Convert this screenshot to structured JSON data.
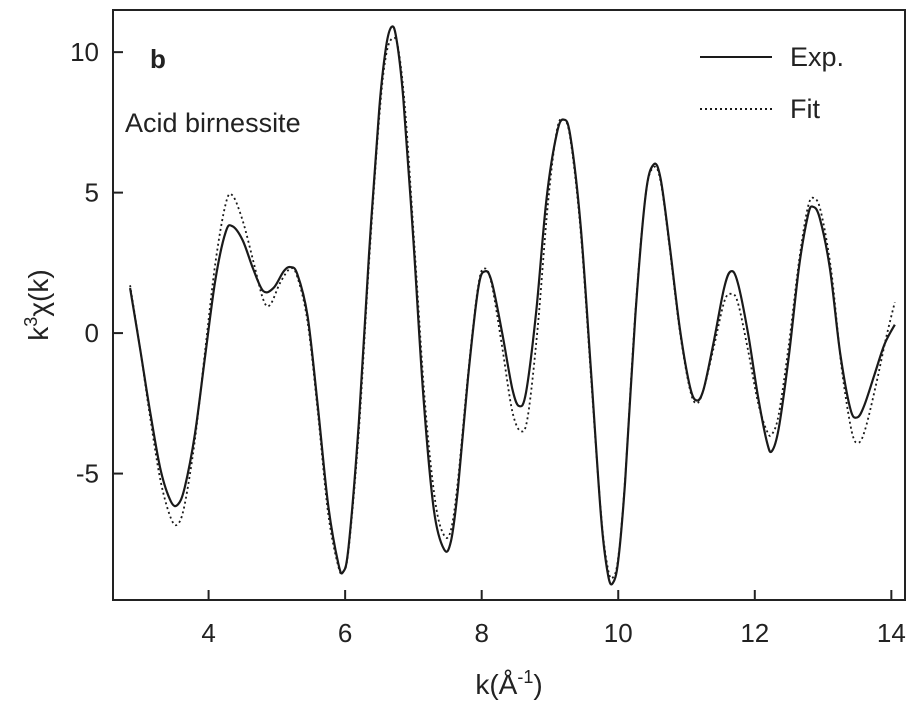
{
  "chart_data": {
    "type": "line",
    "panel_label": "b",
    "annotation": "Acid birnessite",
    "xlabel": {
      "prefix": "k(Å",
      "sup": "-1",
      "suffix": ")"
    },
    "ylabel": {
      "prefix": "k",
      "sup": "3",
      "suffix": "χ(k)"
    },
    "xlim": [
      2.6,
      14.2
    ],
    "ylim": [
      -9.5,
      11.5
    ],
    "xticks": [
      4,
      6,
      8,
      10,
      12,
      14
    ],
    "yticks": [
      -5,
      0,
      5,
      10
    ],
    "legend": {
      "position": "top-right"
    },
    "grid": false,
    "series": [
      {
        "name": "Exp.",
        "style": "solid",
        "color": "#1a1a1a",
        "points": [
          [
            2.85,
            1.6
          ],
          [
            3.0,
            -0.6
          ],
          [
            3.15,
            -2.9
          ],
          [
            3.3,
            -4.9
          ],
          [
            3.45,
            -6.0
          ],
          [
            3.55,
            -6.1
          ],
          [
            3.65,
            -5.5
          ],
          [
            3.8,
            -3.6
          ],
          [
            3.95,
            -0.8
          ],
          [
            4.1,
            1.9
          ],
          [
            4.25,
            3.6
          ],
          [
            4.35,
            3.8
          ],
          [
            4.5,
            3.3
          ],
          [
            4.65,
            2.3
          ],
          [
            4.8,
            1.5
          ],
          [
            4.95,
            1.6
          ],
          [
            5.1,
            2.2
          ],
          [
            5.2,
            2.35
          ],
          [
            5.3,
            2.1
          ],
          [
            5.45,
            0.6
          ],
          [
            5.6,
            -2.6
          ],
          [
            5.75,
            -6.1
          ],
          [
            5.9,
            -8.2
          ],
          [
            5.97,
            -8.5
          ],
          [
            6.05,
            -7.6
          ],
          [
            6.2,
            -3.2
          ],
          [
            6.35,
            2.8
          ],
          [
            6.5,
            8.0
          ],
          [
            6.6,
            10.2
          ],
          [
            6.68,
            10.9
          ],
          [
            6.75,
            10.5
          ],
          [
            6.85,
            8.4
          ],
          [
            7.0,
            3.3
          ],
          [
            7.15,
            -2.4
          ],
          [
            7.3,
            -6.3
          ],
          [
            7.45,
            -7.7
          ],
          [
            7.55,
            -7.4
          ],
          [
            7.65,
            -5.6
          ],
          [
            7.8,
            -1.6
          ],
          [
            7.95,
            1.6
          ],
          [
            8.05,
            2.2
          ],
          [
            8.15,
            1.8
          ],
          [
            8.3,
            0.0
          ],
          [
            8.45,
            -2.0
          ],
          [
            8.55,
            -2.6
          ],
          [
            8.65,
            -2.1
          ],
          [
            8.8,
            0.8
          ],
          [
            8.95,
            4.8
          ],
          [
            9.1,
            7.1
          ],
          [
            9.2,
            7.6
          ],
          [
            9.3,
            7.0
          ],
          [
            9.45,
            3.8
          ],
          [
            9.6,
            -1.3
          ],
          [
            9.75,
            -6.6
          ],
          [
            9.85,
            -8.6
          ],
          [
            9.92,
            -8.9
          ],
          [
            10.0,
            -8.1
          ],
          [
            10.1,
            -5.3
          ],
          [
            10.25,
            0.6
          ],
          [
            10.4,
            4.9
          ],
          [
            10.52,
            6.0
          ],
          [
            10.62,
            5.5
          ],
          [
            10.75,
            3.2
          ],
          [
            10.9,
            0.2
          ],
          [
            11.05,
            -1.9
          ],
          [
            11.15,
            -2.4
          ],
          [
            11.25,
            -2.0
          ],
          [
            11.4,
            -0.3
          ],
          [
            11.55,
            1.6
          ],
          [
            11.65,
            2.2
          ],
          [
            11.75,
            1.8
          ],
          [
            11.9,
            0.0
          ],
          [
            12.05,
            -2.3
          ],
          [
            12.18,
            -3.9
          ],
          [
            12.25,
            -4.2
          ],
          [
            12.35,
            -3.4
          ],
          [
            12.5,
            -0.8
          ],
          [
            12.65,
            2.4
          ],
          [
            12.78,
            4.2
          ],
          [
            12.85,
            4.5
          ],
          [
            12.95,
            4.1
          ],
          [
            13.1,
            2.3
          ],
          [
            13.25,
            -0.7
          ],
          [
            13.4,
            -2.7
          ],
          [
            13.5,
            -3.0
          ],
          [
            13.6,
            -2.6
          ],
          [
            13.75,
            -1.5
          ],
          [
            13.9,
            -0.4
          ],
          [
            14.05,
            0.3
          ]
        ]
      },
      {
        "name": "Fit",
        "style": "dotted",
        "color": "#1a1a1a",
        "points": [
          [
            2.85,
            1.7
          ],
          [
            3.0,
            -0.6
          ],
          [
            3.15,
            -3.1
          ],
          [
            3.3,
            -5.3
          ],
          [
            3.45,
            -6.6
          ],
          [
            3.55,
            -6.8
          ],
          [
            3.65,
            -6.1
          ],
          [
            3.8,
            -3.8
          ],
          [
            3.95,
            -0.6
          ],
          [
            4.1,
            2.5
          ],
          [
            4.25,
            4.6
          ],
          [
            4.35,
            4.9
          ],
          [
            4.5,
            4.0
          ],
          [
            4.65,
            2.6
          ],
          [
            4.8,
            1.2
          ],
          [
            4.9,
            1.0
          ],
          [
            5.05,
            1.8
          ],
          [
            5.2,
            2.3
          ],
          [
            5.3,
            2.0
          ],
          [
            5.45,
            0.4
          ],
          [
            5.6,
            -2.8
          ],
          [
            5.75,
            -6.4
          ],
          [
            5.9,
            -8.3
          ],
          [
            5.97,
            -8.5
          ],
          [
            6.05,
            -7.7
          ],
          [
            6.2,
            -3.5
          ],
          [
            6.35,
            2.5
          ],
          [
            6.5,
            7.7
          ],
          [
            6.6,
            9.9
          ],
          [
            6.7,
            10.5
          ],
          [
            6.78,
            10.1
          ],
          [
            6.88,
            7.9
          ],
          [
            7.02,
            2.9
          ],
          [
            7.17,
            -2.5
          ],
          [
            7.32,
            -6.0
          ],
          [
            7.45,
            -7.2
          ],
          [
            7.55,
            -7.0
          ],
          [
            7.65,
            -5.3
          ],
          [
            7.8,
            -1.5
          ],
          [
            7.95,
            1.7
          ],
          [
            8.05,
            2.3
          ],
          [
            8.15,
            1.7
          ],
          [
            8.3,
            -0.5
          ],
          [
            8.45,
            -2.8
          ],
          [
            8.58,
            -3.5
          ],
          [
            8.68,
            -2.9
          ],
          [
            8.82,
            0.2
          ],
          [
            8.97,
            4.6
          ],
          [
            9.1,
            7.2
          ],
          [
            9.2,
            7.6
          ],
          [
            9.3,
            6.9
          ],
          [
            9.45,
            3.6
          ],
          [
            9.6,
            -1.5
          ],
          [
            9.75,
            -6.5
          ],
          [
            9.85,
            -8.4
          ],
          [
            9.92,
            -8.7
          ],
          [
            10.0,
            -8.0
          ],
          [
            10.1,
            -5.2
          ],
          [
            10.25,
            0.7
          ],
          [
            10.4,
            4.9
          ],
          [
            10.52,
            5.9
          ],
          [
            10.62,
            5.4
          ],
          [
            10.75,
            3.1
          ],
          [
            10.9,
            0.1
          ],
          [
            11.05,
            -2.0
          ],
          [
            11.15,
            -2.5
          ],
          [
            11.25,
            -2.0
          ],
          [
            11.4,
            -0.5
          ],
          [
            11.55,
            1.1
          ],
          [
            11.65,
            1.4
          ],
          [
            11.75,
            1.1
          ],
          [
            11.9,
            -0.6
          ],
          [
            12.05,
            -2.5
          ],
          [
            12.18,
            -3.5
          ],
          [
            12.25,
            -3.6
          ],
          [
            12.35,
            -2.9
          ],
          [
            12.5,
            -0.4
          ],
          [
            12.65,
            2.6
          ],
          [
            12.78,
            4.5
          ],
          [
            12.87,
            4.8
          ],
          [
            12.97,
            4.3
          ],
          [
            13.12,
            2.2
          ],
          [
            13.27,
            -1.2
          ],
          [
            13.42,
            -3.5
          ],
          [
            13.52,
            -3.9
          ],
          [
            13.62,
            -3.4
          ],
          [
            13.77,
            -1.9
          ],
          [
            13.92,
            -0.2
          ],
          [
            14.05,
            1.1
          ]
        ]
      }
    ]
  }
}
